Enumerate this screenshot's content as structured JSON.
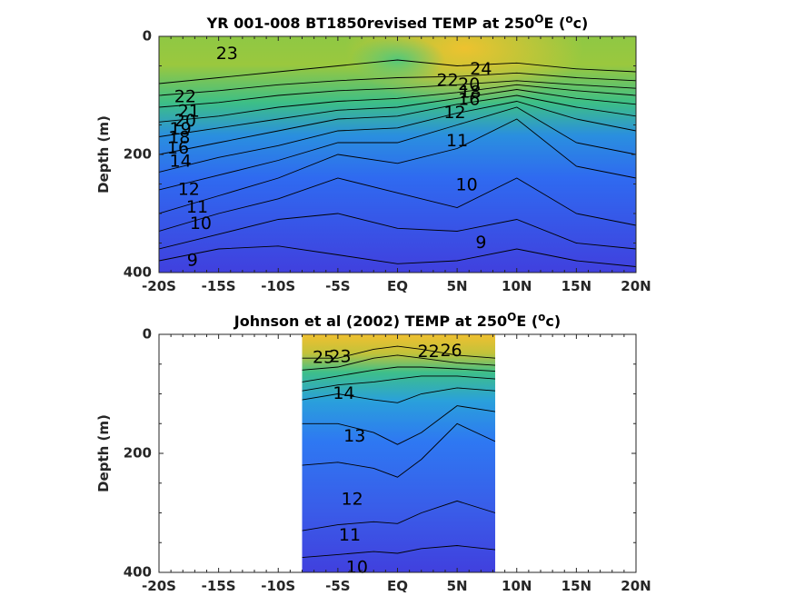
{
  "chart_data": [
    {
      "type": "heatmap",
      "title_main": "YR 001-008 BT1850revised TEMP at 250",
      "title_sup": "O",
      "title_mid": "E (",
      "title_sup2": "o",
      "title_end": "c)",
      "ylabel": "Depth (m)",
      "xlim": [
        -20,
        20
      ],
      "ylim": [
        0,
        400
      ],
      "y_reversed": true,
      "x_ticks": [
        -20,
        -15,
        -10,
        -5,
        0,
        5,
        10,
        15,
        20
      ],
      "x_tick_labels": [
        "-20S",
        "-15S",
        "-10S",
        "-5S",
        "EQ",
        "5N",
        "10N",
        "15N",
        "20N"
      ],
      "y_ticks": [
        0,
        200,
        400
      ],
      "y_tick_labels": [
        "0",
        "200",
        "400"
      ],
      "colormap": [
        "#3f3fe0",
        "#2f6ff0",
        "#2a9fd8",
        "#2fc08e",
        "#9fc840",
        "#f0c030"
      ],
      "data_x_range": [
        -20,
        20
      ],
      "contour_labels": [
        {
          "text": "23",
          "x": -14.3,
          "y": 30
        },
        {
          "text": "22",
          "x": -17.8,
          "y": 103
        },
        {
          "text": "21",
          "x": -17.5,
          "y": 128
        },
        {
          "text": "20",
          "x": -17.8,
          "y": 144
        },
        {
          "text": "19",
          "x": -18.2,
          "y": 158
        },
        {
          "text": "18",
          "x": -18.3,
          "y": 172
        },
        {
          "text": "16",
          "x": -18.4,
          "y": 190
        },
        {
          "text": "14",
          "x": -18.2,
          "y": 212
        },
        {
          "text": "12",
          "x": -17.5,
          "y": 260
        },
        {
          "text": "11",
          "x": -16.8,
          "y": 290
        },
        {
          "text": "10",
          "x": -16.5,
          "y": 318
        },
        {
          "text": "9",
          "x": -17.2,
          "y": 380
        },
        {
          "text": "24",
          "x": 7.0,
          "y": 56
        },
        {
          "text": "22",
          "x": 4.2,
          "y": 75
        },
        {
          "text": "20",
          "x": 6.0,
          "y": 82
        },
        {
          "text": "18",
          "x": 6.1,
          "y": 95
        },
        {
          "text": "16",
          "x": 6.0,
          "y": 108
        },
        {
          "text": "12",
          "x": 4.8,
          "y": 130
        },
        {
          "text": "11",
          "x": 5.0,
          "y": 178
        },
        {
          "text": "10",
          "x": 5.8,
          "y": 252
        },
        {
          "text": "9",
          "x": 7.0,
          "y": 350
        }
      ],
      "contour_lines": [
        {
          "x": [
            -20,
            -15,
            -10,
            -5,
            0,
            5,
            10,
            15,
            20
          ],
          "y": [
            380,
            360,
            355,
            370,
            385,
            380,
            360,
            380,
            390
          ]
        },
        {
          "x": [
            -20,
            -15,
            -10,
            -5,
            0,
            5,
            10,
            15,
            20
          ],
          "y": [
            360,
            335,
            310,
            300,
            325,
            330,
            310,
            350,
            360
          ]
        },
        {
          "x": [
            -20,
            -15,
            -10,
            -5,
            0,
            5,
            10,
            15,
            20
          ],
          "y": [
            330,
            300,
            275,
            240,
            265,
            290,
            240,
            300,
            320
          ]
        },
        {
          "x": [
            -20,
            -15,
            -10,
            -5,
            0,
            5,
            10,
            15,
            20
          ],
          "y": [
            300,
            270,
            240,
            200,
            215,
            190,
            140,
            220,
            240
          ]
        },
        {
          "x": [
            -20,
            -15,
            -10,
            -5,
            0,
            5,
            10,
            15,
            20
          ],
          "y": [
            260,
            235,
            210,
            180,
            180,
            150,
            120,
            180,
            200
          ]
        },
        {
          "x": [
            -20,
            -15,
            -10,
            -5,
            0,
            5,
            10,
            15,
            20
          ],
          "y": [
            230,
            205,
            185,
            160,
            155,
            130,
            110,
            140,
            160
          ]
        },
        {
          "x": [
            -20,
            -15,
            -10,
            -5,
            0,
            5,
            10,
            15,
            20
          ],
          "y": [
            200,
            180,
            160,
            140,
            135,
            115,
            100,
            120,
            135
          ]
        },
        {
          "x": [
            -20,
            -15,
            -10,
            -5,
            0,
            5,
            10,
            15,
            20
          ],
          "y": [
            170,
            155,
            140,
            125,
            120,
            105,
            90,
            105,
            115
          ]
        },
        {
          "x": [
            -20,
            -15,
            -10,
            -5,
            0,
            5,
            10,
            15,
            20
          ],
          "y": [
            145,
            135,
            120,
            110,
            105,
            95,
            82,
            92,
            100
          ]
        },
        {
          "x": [
            -20,
            -15,
            -10,
            -5,
            0,
            5,
            10,
            15,
            20
          ],
          "y": [
            120,
            112,
            100,
            92,
            88,
            82,
            75,
            82,
            88
          ]
        },
        {
          "x": [
            -20,
            -15,
            -10,
            -5,
            0,
            5,
            10,
            15,
            20
          ],
          "y": [
            100,
            92,
            82,
            75,
            70,
            68,
            62,
            70,
            75
          ]
        },
        {
          "x": [
            -20,
            -15,
            -10,
            -5,
            0,
            5,
            10,
            15,
            20
          ],
          "y": [
            80,
            70,
            60,
            50,
            40,
            50,
            45,
            55,
            60
          ]
        }
      ]
    },
    {
      "type": "heatmap",
      "title_main": "Johnson et al (2002) TEMP at 250",
      "title_sup": "O",
      "title_mid": "E (",
      "title_sup2": "o",
      "title_end": "c)",
      "ylabel": "Depth (m)",
      "xlim": [
        -20,
        20
      ],
      "ylim": [
        0,
        400
      ],
      "y_reversed": true,
      "x_ticks": [
        -20,
        -15,
        -10,
        -5,
        0,
        5,
        10,
        15,
        20
      ],
      "x_tick_labels": [
        "-20S",
        "-15S",
        "-10S",
        "-5S",
        "EQ",
        "5N",
        "10N",
        "15N",
        "20N"
      ],
      "y_ticks": [
        0,
        200,
        400
      ],
      "y_tick_labels": [
        "0",
        "200",
        "400"
      ],
      "colormap": [
        "#3f3fe0",
        "#2f6ff0",
        "#2a9fd8",
        "#2fc08e",
        "#9fc840",
        "#f0c030"
      ],
      "data_x_range": [
        -8,
        8.2
      ],
      "contour_labels": [
        {
          "text": "25",
          "x": -6.2,
          "y": 40
        },
        {
          "text": "23",
          "x": -4.8,
          "y": 38
        },
        {
          "text": "26",
          "x": 4.5,
          "y": 28
        },
        {
          "text": "22",
          "x": 2.6,
          "y": 30
        },
        {
          "text": "14",
          "x": -4.5,
          "y": 100
        },
        {
          "text": "13",
          "x": -3.6,
          "y": 172
        },
        {
          "text": "12",
          "x": -3.8,
          "y": 278
        },
        {
          "text": "11",
          "x": -4.0,
          "y": 338
        },
        {
          "text": "10",
          "x": -3.4,
          "y": 392
        }
      ],
      "contour_lines": [
        {
          "x": [
            -8,
            -5,
            -2,
            0,
            2,
            5,
            8.2
          ],
          "y": [
            375,
            370,
            365,
            368,
            360,
            355,
            362
          ]
        },
        {
          "x": [
            -8,
            -5,
            -2,
            0,
            2,
            5,
            8.2
          ],
          "y": [
            330,
            320,
            315,
            318,
            300,
            280,
            300
          ]
        },
        {
          "x": [
            -8,
            -5,
            -2,
            0,
            2,
            5,
            8.2
          ],
          "y": [
            220,
            215,
            225,
            240,
            210,
            150,
            180
          ]
        },
        {
          "x": [
            -8,
            -5,
            -2,
            0,
            2,
            5,
            8.2
          ],
          "y": [
            150,
            150,
            165,
            185,
            165,
            120,
            130
          ]
        },
        {
          "x": [
            -8,
            -5,
            -2,
            0,
            2,
            5,
            8.2
          ],
          "y": [
            110,
            100,
            110,
            115,
            100,
            90,
            95
          ]
        },
        {
          "x": [
            -8,
            -5,
            -2,
            0,
            2,
            5,
            8.2
          ],
          "y": [
            95,
            85,
            80,
            75,
            70,
            70,
            75
          ]
        },
        {
          "x": [
            -8,
            -5,
            -2,
            0,
            2,
            5,
            8.2
          ],
          "y": [
            80,
            70,
            60,
            55,
            55,
            58,
            62
          ]
        },
        {
          "x": [
            -8,
            -5,
            -2,
            0,
            2,
            5,
            8.2
          ],
          "y": [
            60,
            55,
            40,
            35,
            40,
            48,
            52
          ]
        },
        {
          "x": [
            -8,
            -5,
            -2,
            0,
            2,
            5,
            8.2
          ],
          "y": [
            40,
            40,
            25,
            20,
            25,
            35,
            40
          ]
        }
      ]
    }
  ]
}
